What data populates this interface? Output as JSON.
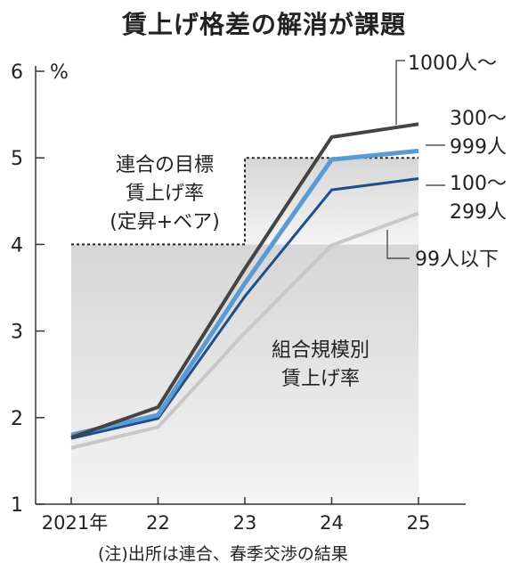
{
  "title": "賃上げ格差の解消が課題",
  "note": "(注)出所は連合、春季交渉の結果",
  "chart_data": {
    "type": "line",
    "title": "賃上げ格差の解消が課題",
    "x": [
      "2021年",
      "22",
      "23",
      "24",
      "25"
    ],
    "ylabel": "%",
    "ylim": [
      1,
      6
    ],
    "yticks": [
      "1",
      "2",
      "3",
      "4",
      "5",
      "6"
    ],
    "grid": false,
    "series": [
      {
        "name": "1000人〜",
        "values": [
          1.77,
          2.12,
          3.72,
          5.24,
          5.39
        ],
        "color": "#444444"
      },
      {
        "name": "300〜999人",
        "values": [
          1.8,
          2.03,
          3.55,
          4.98,
          5.08
        ],
        "color": "#5b9bd5"
      },
      {
        "name": "100〜299人",
        "values": [
          1.76,
          1.99,
          3.4,
          4.63,
          4.76
        ],
        "color": "#1f4e8c"
      },
      {
        "name": "99人以下",
        "values": [
          1.65,
          1.89,
          2.98,
          3.99,
          4.36
        ],
        "color": "#c8c8c8"
      }
    ],
    "target": {
      "label": [
        "連合の目標",
        "賃上げ率",
        "(定昇+ベア)"
      ],
      "values": [
        4,
        4,
        5,
        5,
        5
      ]
    },
    "annotation": [
      "組合規模別",
      "賃上げ率"
    ],
    "legend": "right-labels"
  }
}
